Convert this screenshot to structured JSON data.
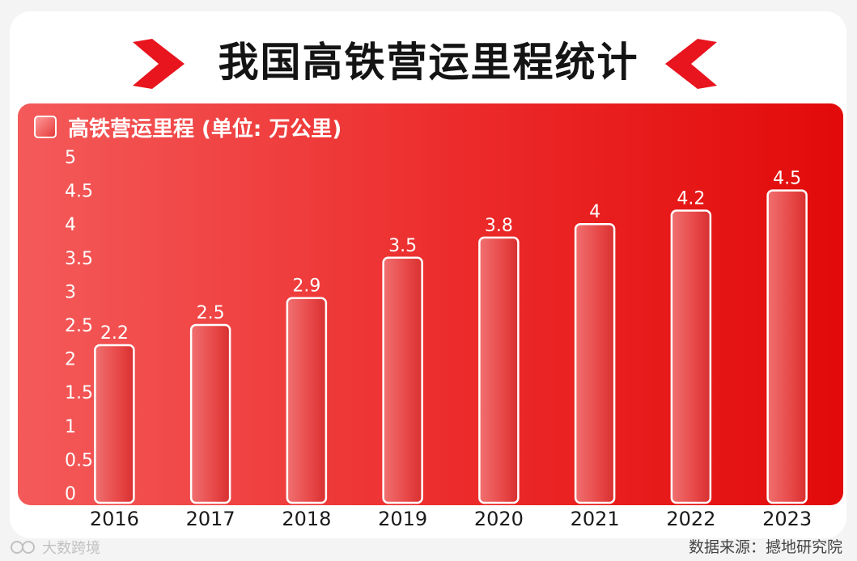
{
  "title": "我国高铁营运里程统计",
  "colors": {
    "accent": "#e8141e",
    "bar_outline": "#ffffff",
    "text_dark": "#141414"
  },
  "chart_data": {
    "type": "bar",
    "title": "我国高铁营运里程统计",
    "categories": [
      "2016",
      "2017",
      "2018",
      "2019",
      "2020",
      "2021",
      "2022",
      "2023"
    ],
    "series": [
      {
        "name": "高铁营运里程 (单位: 万公里)",
        "values": [
          2.2,
          2.5,
          2.9,
          3.5,
          3.8,
          4,
          4.2,
          4.5
        ]
      }
    ],
    "data_labels": [
      "2.2",
      "2.5",
      "2.9",
      "3.5",
      "3.8",
      "4",
      "4.2",
      "4.5"
    ],
    "yticks": [
      "0",
      "0.5",
      "1",
      "1.5",
      "2",
      "2.5",
      "3",
      "3.5",
      "4",
      "4.5",
      "5"
    ],
    "ylim": [
      0,
      5
    ],
    "xlabel": "",
    "ylabel": "",
    "grid": false,
    "legend": "top-left"
  },
  "footer": {
    "source": "数据来源：撼地研究院",
    "watermark": "大数跨境"
  }
}
